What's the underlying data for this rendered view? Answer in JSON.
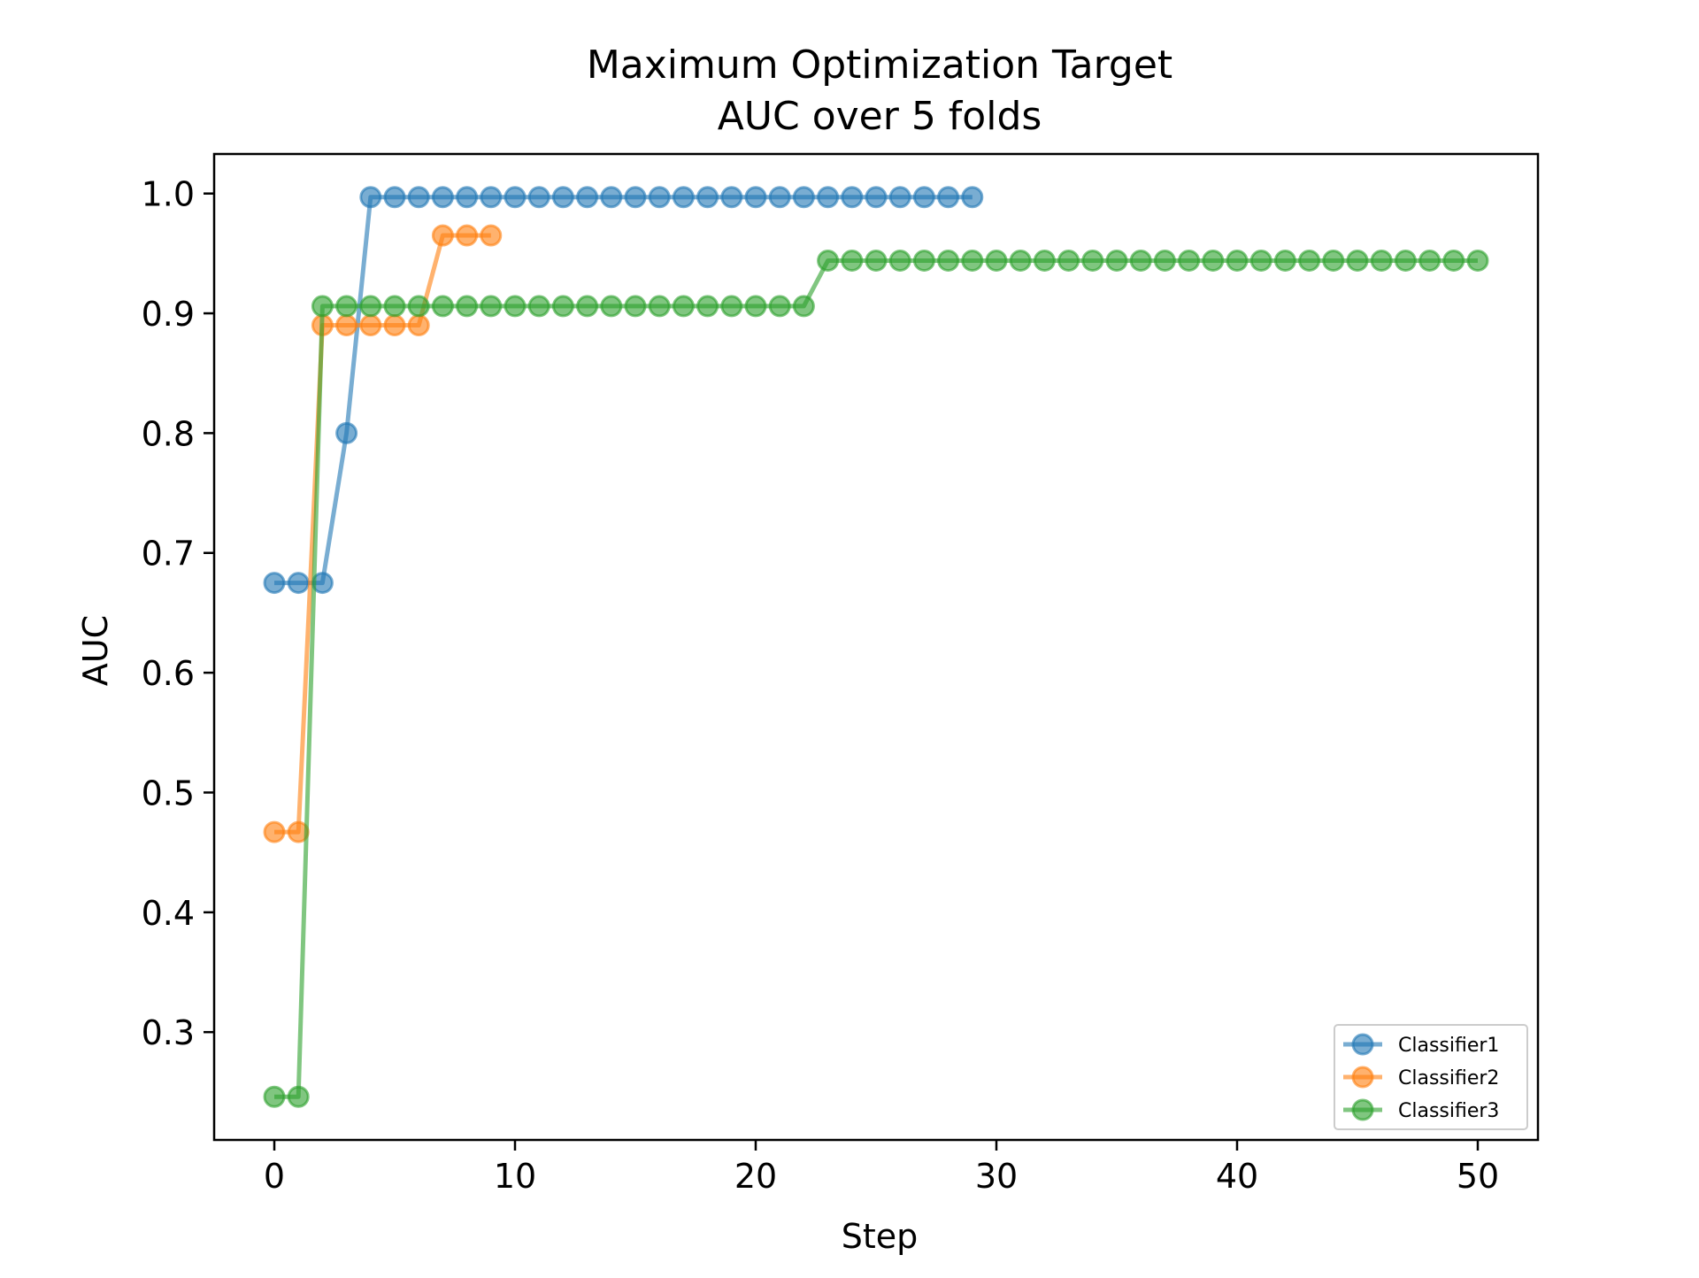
{
  "chart_data": {
    "type": "line",
    "title_line1": "Maximum Optimization Target",
    "title_line2": "AUC over 5 folds",
    "xlabel": "Step",
    "ylabel": "AUC",
    "xlim": [
      -2.5,
      52.5
    ],
    "ylim": [
      0.21,
      1.033
    ],
    "xticks": [
      0,
      10,
      20,
      30,
      40,
      50
    ],
    "xtick_labels": [
      "0",
      "10",
      "20",
      "30",
      "40",
      "50"
    ],
    "yticks": [
      0.3,
      0.4,
      0.5,
      0.6,
      0.7,
      0.8,
      0.9,
      1.0
    ],
    "ytick_labels": [
      "0.3",
      "0.4",
      "0.5",
      "0.6",
      "0.7",
      "0.8",
      "0.9",
      "1.0"
    ],
    "grid": false,
    "legend_position": "lower-right",
    "series": [
      {
        "name": "Classifier1",
        "color": "#1f77b4",
        "x": [
          0,
          1,
          2,
          3,
          4,
          5,
          6,
          7,
          8,
          9,
          10,
          11,
          12,
          13,
          14,
          15,
          16,
          17,
          18,
          19,
          20,
          21,
          22,
          23,
          24,
          25,
          26,
          27,
          28,
          29
        ],
        "y": [
          0.675,
          0.675,
          0.675,
          0.8,
          0.997,
          0.997,
          0.997,
          0.997,
          0.997,
          0.997,
          0.997,
          0.997,
          0.997,
          0.997,
          0.997,
          0.997,
          0.997,
          0.997,
          0.997,
          0.997,
          0.997,
          0.997,
          0.997,
          0.997,
          0.997,
          0.997,
          0.997,
          0.997,
          0.997,
          0.997
        ]
      },
      {
        "name": "Classifier2",
        "color": "#ff7f0e",
        "x": [
          0,
          1,
          2,
          3,
          4,
          5,
          6,
          7,
          8,
          9
        ],
        "y": [
          0.467,
          0.467,
          0.89,
          0.89,
          0.89,
          0.89,
          0.89,
          0.965,
          0.965,
          0.965
        ]
      },
      {
        "name": "Classifier3",
        "color": "#2ca02c",
        "x": [
          0,
          1,
          2,
          3,
          4,
          5,
          6,
          7,
          8,
          9,
          10,
          11,
          12,
          13,
          14,
          15,
          16,
          17,
          18,
          19,
          20,
          21,
          22,
          23,
          24,
          25,
          26,
          27,
          28,
          29,
          30,
          31,
          32,
          33,
          34,
          35,
          36,
          37,
          38,
          39,
          40,
          41,
          42,
          43,
          44,
          45,
          46,
          47,
          48,
          49,
          50
        ],
        "y": [
          0.246,
          0.246,
          0.906,
          0.906,
          0.906,
          0.906,
          0.906,
          0.906,
          0.906,
          0.906,
          0.906,
          0.906,
          0.906,
          0.906,
          0.906,
          0.906,
          0.906,
          0.906,
          0.906,
          0.906,
          0.906,
          0.906,
          0.906,
          0.944,
          0.944,
          0.944,
          0.944,
          0.944,
          0.944,
          0.944,
          0.944,
          0.944,
          0.944,
          0.944,
          0.944,
          0.944,
          0.944,
          0.944,
          0.944,
          0.944,
          0.944,
          0.944,
          0.944,
          0.944,
          0.944,
          0.944,
          0.944,
          0.944,
          0.944,
          0.944,
          0.944
        ]
      }
    ]
  }
}
